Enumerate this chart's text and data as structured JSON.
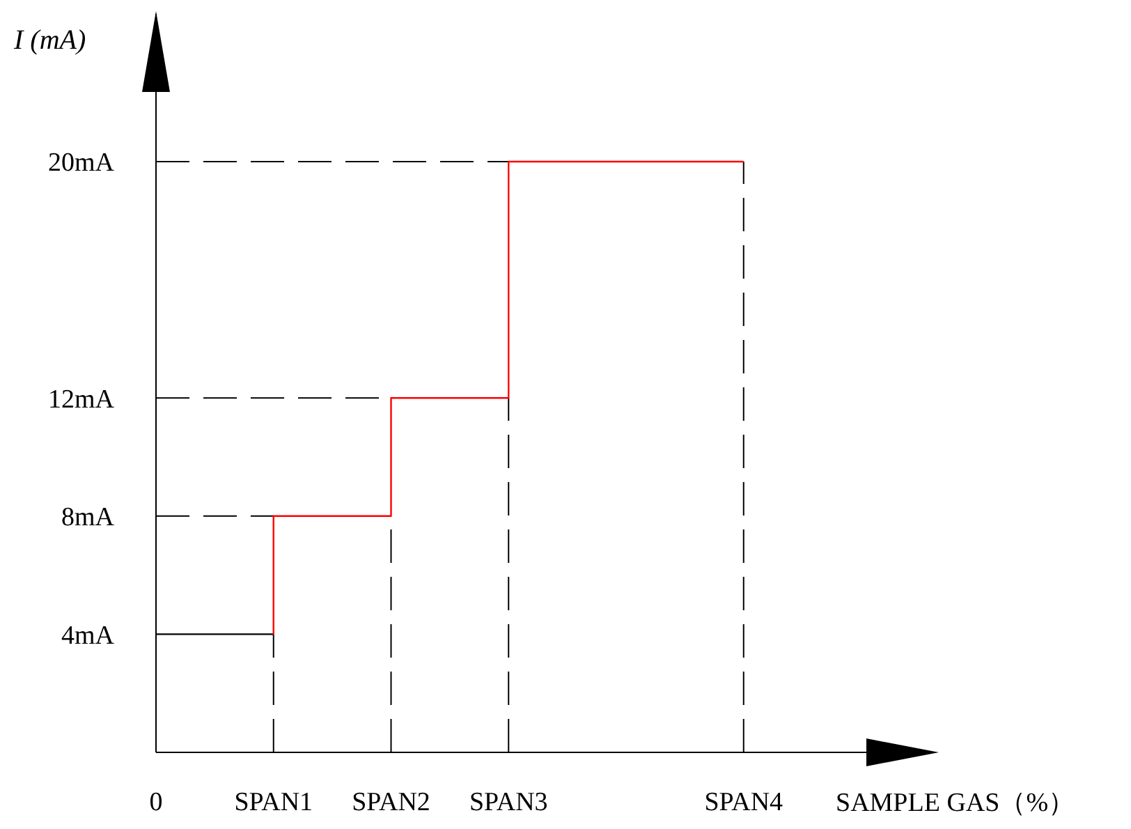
{
  "chart_data": {
    "type": "line",
    "xlabel": "SAMPLE GAS（%）",
    "ylabel": "I (mA)",
    "categories": [
      "0",
      "SPAN1",
      "SPAN2",
      "SPAN3",
      null,
      "SPAN4",
      null
    ],
    "ylim": [
      0,
      25
    ],
    "yticks": [
      {
        "value": 4,
        "label": "4mA"
      },
      {
        "value": 8,
        "label": "8mA"
      },
      {
        "value": 12,
        "label": "12mA"
      },
      {
        "value": 20,
        "label": "20mA"
      }
    ],
    "series": [
      {
        "color": "#000000",
        "x": [
          "0",
          "SPAN1"
        ],
        "values": [
          4,
          4
        ]
      },
      {
        "color": "#ff0000",
        "x": [
          "SPAN1",
          "SPAN1",
          "SPAN2",
          "SPAN2",
          "SPAN3",
          "SPAN3",
          "SPAN4"
        ],
        "values": [
          4,
          8,
          8,
          12,
          12,
          20,
          20
        ]
      }
    ],
    "ref_lines": [
      {
        "axis": "x",
        "value": "SPAN1",
        "color": "#000000",
        "line_style": "dashed"
      },
      {
        "axis": "x",
        "value": "SPAN2",
        "color": "#000000",
        "line_style": "dashed"
      },
      {
        "axis": "x",
        "value": "SPAN3",
        "color": "#000000",
        "line_style": "dashed"
      },
      {
        "axis": "x",
        "value": "SPAN4",
        "color": "#000000",
        "line_style": "dashed"
      },
      {
        "axis": "y",
        "value": 8,
        "color": "#000000",
        "line_style": "dashed"
      },
      {
        "axis": "y",
        "value": 12,
        "color": "#000000",
        "line_style": "dashed"
      },
      {
        "axis": "y",
        "value": 20,
        "color": "#000000",
        "line_style": "dashed"
      }
    ],
    "grid": false,
    "legend": false
  }
}
